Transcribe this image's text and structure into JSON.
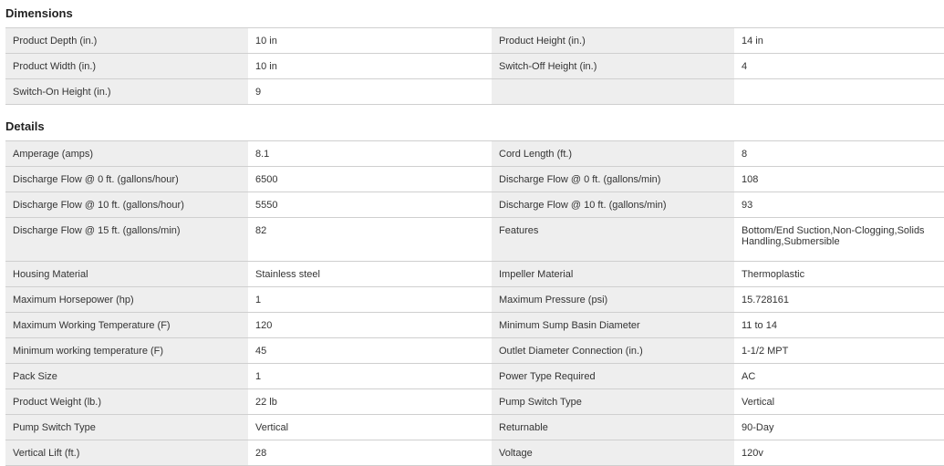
{
  "dimensions": {
    "title": "Dimensions",
    "rows": [
      [
        {
          "label": "Product Depth (in.)",
          "value": "10 in"
        },
        {
          "label": "Product Height (in.)",
          "value": "14 in"
        }
      ],
      [
        {
          "label": "Product Width (in.)",
          "value": "10 in"
        },
        {
          "label": "Switch-Off Height (in.)",
          "value": "4"
        }
      ],
      [
        {
          "label": "Switch-On Height (in.)",
          "value": "9"
        },
        {
          "label": "",
          "value": ""
        }
      ]
    ]
  },
  "details": {
    "title": "Details",
    "rows": [
      [
        {
          "label": "Amperage (amps)",
          "value": "8.1"
        },
        {
          "label": "Cord Length (ft.)",
          "value": "8"
        }
      ],
      [
        {
          "label": "Discharge Flow @ 0 ft. (gallons/hour)",
          "value": "6500"
        },
        {
          "label": "Discharge Flow @ 0 ft. (gallons/min)",
          "value": "108"
        }
      ],
      [
        {
          "label": "Discharge Flow @ 10 ft. (gallons/hour)",
          "value": "5550"
        },
        {
          "label": "Discharge Flow @ 10 ft. (gallons/min)",
          "value": "93"
        }
      ],
      [
        {
          "label": "Discharge Flow @ 15 ft. (gallons/min)",
          "value": "82"
        },
        {
          "label": "Features",
          "value": "Bottom/End Suction,Non-Clogging,Solids Handling,Submersible"
        }
      ],
      [
        {
          "label": "Housing Material",
          "value": "Stainless steel"
        },
        {
          "label": "Impeller Material",
          "value": "Thermoplastic"
        }
      ],
      [
        {
          "label": "Maximum Horsepower (hp)",
          "value": "1"
        },
        {
          "label": "Maximum Pressure (psi)",
          "value": "15.728161"
        }
      ],
      [
        {
          "label": "Maximum Working Temperature (F)",
          "value": "120"
        },
        {
          "label": "Minimum Sump Basin Diameter",
          "value": "11 to 14"
        }
      ],
      [
        {
          "label": "Minimum working temperature (F)",
          "value": "45"
        },
        {
          "label": "Outlet Diameter Connection (in.)",
          "value": "1-1/2 MPT"
        }
      ],
      [
        {
          "label": "Pack Size",
          "value": "1"
        },
        {
          "label": "Power Type Required",
          "value": "AC"
        }
      ],
      [
        {
          "label": "Product Weight (lb.)",
          "value": "22 lb"
        },
        {
          "label": "Pump Switch Type",
          "value": "Vertical"
        }
      ],
      [
        {
          "label": "Pump Switch Type",
          "value": "Vertical"
        },
        {
          "label": "Returnable",
          "value": "90-Day"
        }
      ],
      [
        {
          "label": "Vertical Lift (ft.)",
          "value": "28"
        },
        {
          "label": "Voltage",
          "value": "120v"
        }
      ]
    ]
  }
}
